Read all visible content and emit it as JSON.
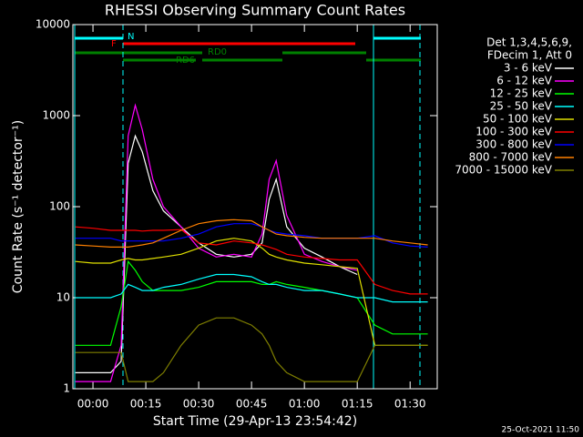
{
  "chart_data": {
    "type": "line",
    "title": "RHESSI Observing Summary Count Rates",
    "xlabel": "Start Time (29-Apr-13 23:54:42)",
    "ylabel": "Count Rate (s⁻¹ detector⁻¹)",
    "legend_header": [
      "Det 1,3,4,5,6,9,",
      "FDecim 1, Att 0"
    ],
    "annotations": [
      "N",
      "F",
      "RD0",
      "RD6"
    ],
    "timestamp": "25-Oct-2021 11:50",
    "log_y": true,
    "legend": "right",
    "xlim": [
      -5.7,
      97.7
    ],
    "ylim": [
      1,
      10000
    ],
    "xticks": [
      {
        "value": 0,
        "label": "00:00"
      },
      {
        "value": 15,
        "label": "00:15"
      },
      {
        "value": 30,
        "label": "00:30"
      },
      {
        "value": 45,
        "label": "00:45"
      },
      {
        "value": 60,
        "label": "01:00"
      },
      {
        "value": 75,
        "label": "01:15"
      },
      {
        "value": 90,
        "label": "01:30"
      }
    ],
    "yticks": [
      1,
      10,
      100,
      1000,
      10000
    ],
    "x": [
      -5,
      0,
      5,
      8,
      10,
      12,
      14,
      17,
      20,
      25,
      30,
      35,
      40,
      45,
      48,
      50,
      52,
      55,
      60,
      65,
      70,
      75,
      80,
      85,
      90,
      95
    ],
    "series": [
      {
        "name": "3 - 6 keV",
        "color": "#ffffff",
        "values": [
          1.5,
          1.5,
          1.5,
          2,
          300,
          600,
          400,
          150,
          90,
          60,
          40,
          30,
          28,
          30,
          40,
          120,
          200,
          60,
          35,
          28,
          22,
          18,
          null,
          null,
          null,
          null
        ]
      },
      {
        "name": "6 - 12 keV",
        "color": "#ff00ff",
        "values": [
          1.2,
          1.2,
          1.2,
          3,
          600,
          1300,
          700,
          200,
          100,
          60,
          35,
          28,
          30,
          28,
          50,
          200,
          320,
          80,
          30,
          25,
          22,
          20,
          null,
          null,
          null,
          null
        ]
      },
      {
        "name": "12 - 25 keV",
        "color": "#00ff00",
        "values": [
          3,
          3,
          3,
          8,
          25,
          20,
          15,
          12,
          12,
          12,
          13,
          15,
          15,
          15,
          14,
          14,
          15,
          14,
          13,
          12,
          11,
          10,
          5,
          4,
          4,
          4
        ]
      },
      {
        "name": "25 - 50 keV",
        "color": "#00ffff",
        "values": [
          10,
          10,
          10,
          11,
          14,
          13,
          12,
          12,
          13,
          14,
          16,
          18,
          18,
          17,
          15,
          14,
          14,
          13,
          12,
          12,
          11,
          10,
          10,
          9,
          9,
          9
        ]
      },
      {
        "name": "50 - 100 keV",
        "color": "#e0e000",
        "values": [
          25,
          24,
          24,
          26,
          27,
          26,
          26,
          27,
          28,
          30,
          35,
          42,
          45,
          42,
          35,
          30,
          28,
          26,
          24,
          23,
          22,
          21,
          3,
          3,
          3,
          3
        ]
      },
      {
        "name": "100 - 300 keV",
        "color": "#ff0000",
        "values": [
          60,
          58,
          55,
          55,
          55,
          55,
          54,
          55,
          55,
          56,
          40,
          38,
          42,
          40,
          38,
          36,
          34,
          30,
          28,
          27,
          26,
          26,
          14,
          12,
          11,
          11
        ]
      },
      {
        "name": "300 - 800 keV",
        "color": "#0000ff",
        "values": [
          45,
          45,
          45,
          42,
          42,
          42,
          42,
          42,
          42,
          45,
          50,
          60,
          65,
          65,
          60,
          55,
          52,
          50,
          48,
          45,
          45,
          45,
          48,
          40,
          37,
          36
        ]
      },
      {
        "name": "800 - 7000 keV",
        "color": "#ff8000",
        "values": [
          38,
          37,
          36,
          36,
          36,
          37,
          38,
          40,
          45,
          55,
          65,
          70,
          72,
          70,
          60,
          55,
          50,
          48,
          46,
          45,
          45,
          45,
          45,
          42,
          40,
          38
        ]
      },
      {
        "name": "7000 - 15000 keV",
        "color": "#808000",
        "values": [
          2.5,
          2.5,
          2.5,
          2.5,
          1.2,
          1.2,
          1.2,
          1.2,
          1.5,
          3,
          5,
          6,
          6,
          5,
          4,
          3,
          2,
          1.5,
          1.2,
          1.2,
          1.2,
          1.2,
          3,
          3,
          3,
          3
        ]
      }
    ]
  }
}
